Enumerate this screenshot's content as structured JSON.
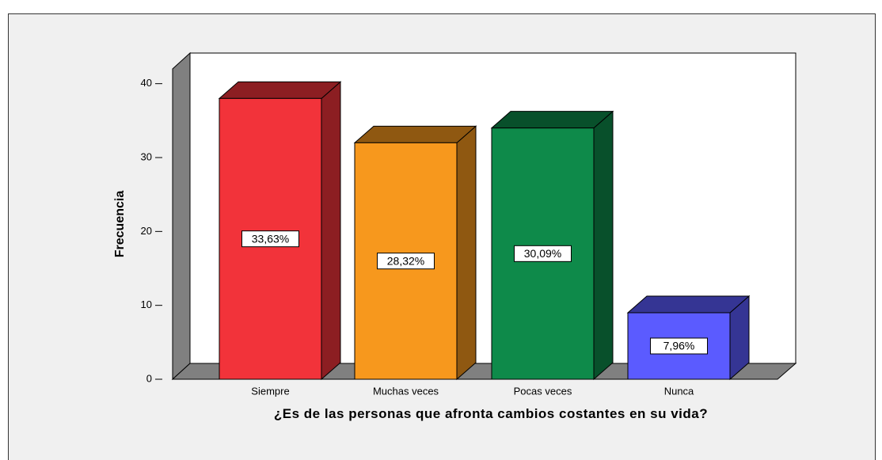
{
  "chart_data": {
    "type": "bar3d",
    "y_label": "Frecuencia",
    "x_label": "¿Es de las personas que afronta cambios costantes en su vida?",
    "categories": [
      "Siempre",
      "Muchas veces",
      "Pocas veces",
      "Nunca"
    ],
    "values": [
      38,
      32,
      34,
      9
    ],
    "data_labels": [
      "33,63%",
      "28,32%",
      "30,09%",
      "7,96%"
    ],
    "colors": [
      "#f2333a",
      "#f7981d",
      "#0e8a4a",
      "#5b5bff"
    ],
    "ylim": [
      0,
      42
    ],
    "yticks": [
      0,
      10,
      20,
      30,
      40
    ]
  }
}
